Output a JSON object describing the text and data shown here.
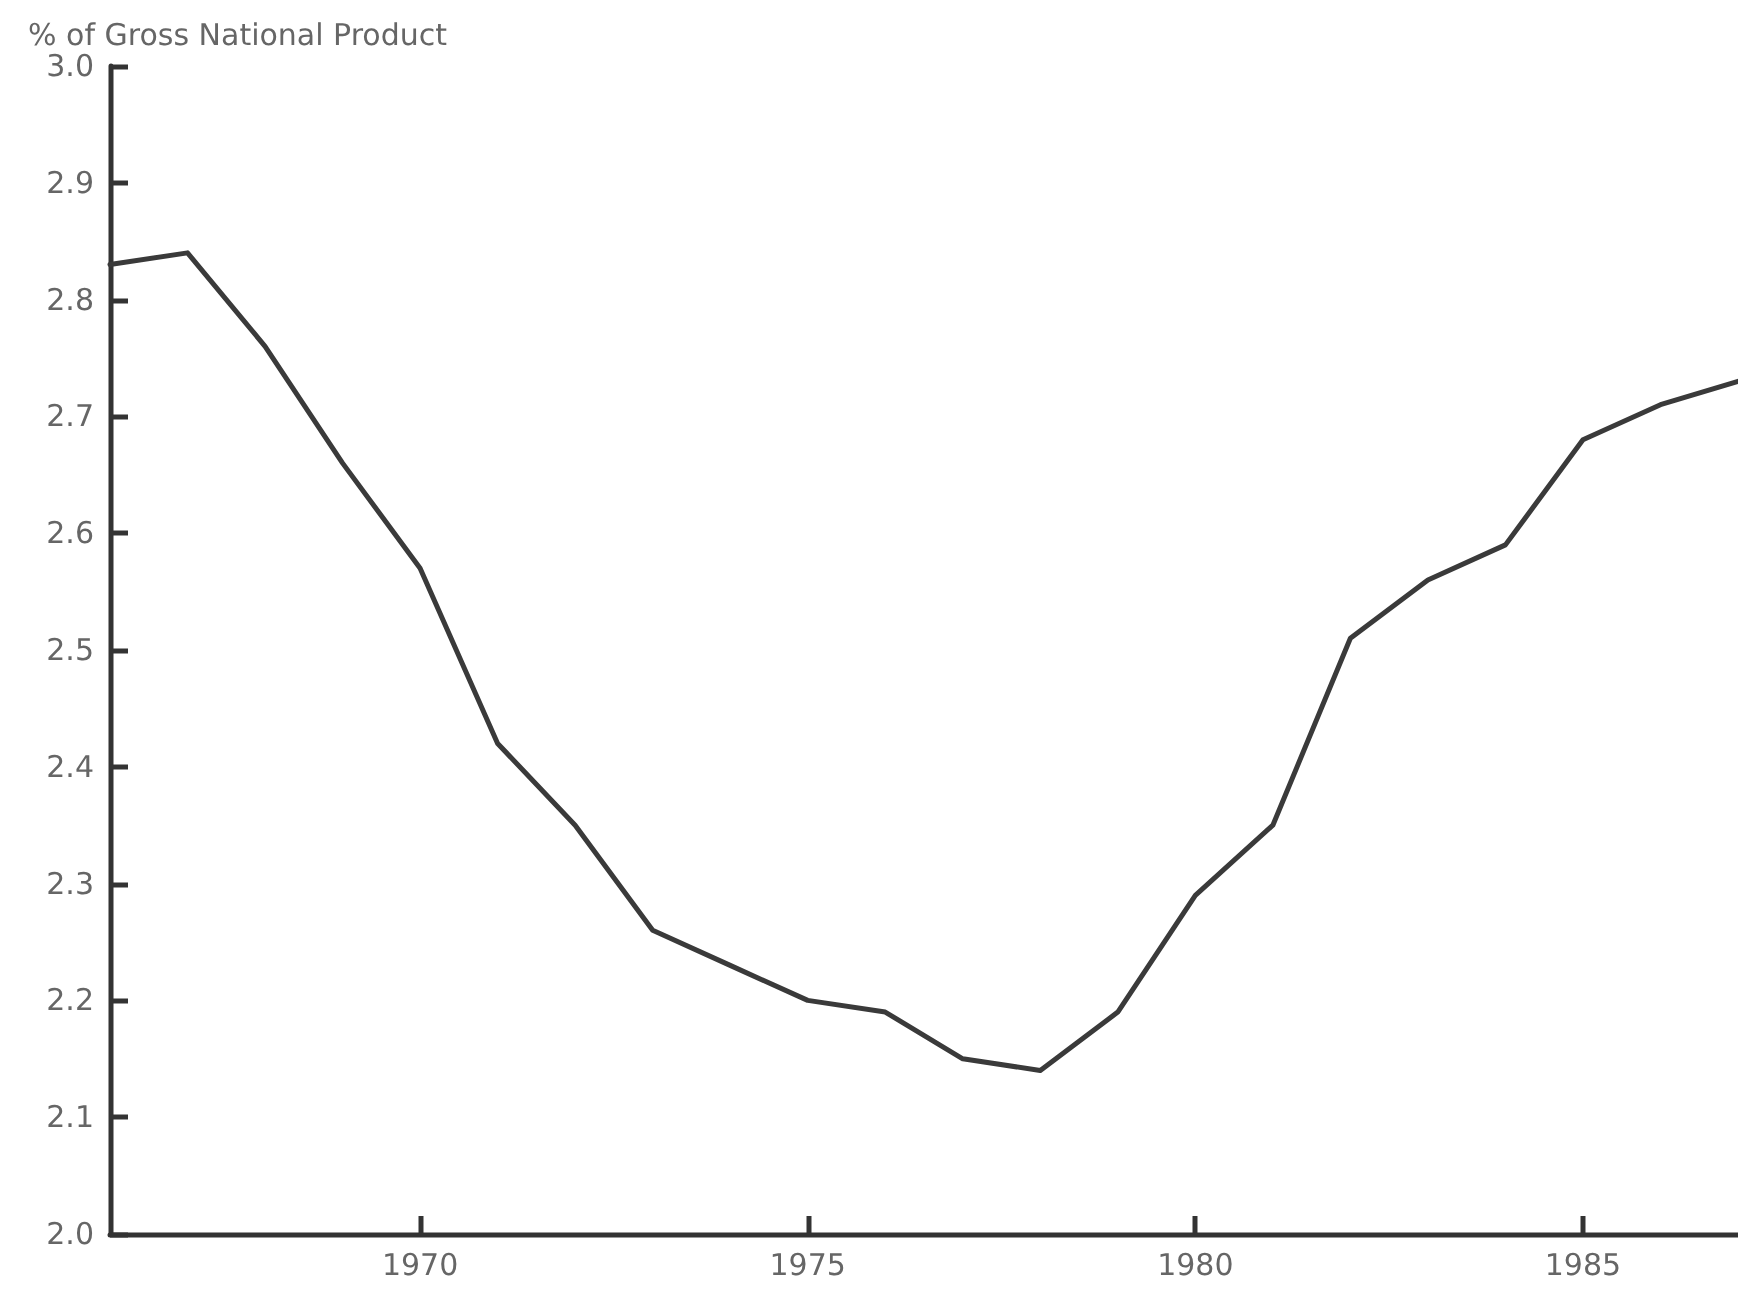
{
  "chart_data": {
    "type": "line",
    "ylabel": "% of Gross National Product",
    "x": [
      1966,
      1967,
      1968,
      1969,
      1970,
      1971,
      1972,
      1973,
      1974,
      1975,
      1976,
      1977,
      1978,
      1979,
      1980,
      1981,
      1982,
      1983,
      1984,
      1985,
      1986,
      1987
    ],
    "series": [
      {
        "color": "#3a3a3a",
        "values": [
          2.83,
          2.84,
          2.76,
          2.66,
          2.57,
          2.42,
          2.35,
          2.26,
          2.23,
          2.2,
          2.19,
          2.15,
          2.14,
          2.19,
          2.29,
          2.35,
          2.51,
          2.56,
          2.59,
          2.68,
          2.71,
          2.73
        ]
      }
    ],
    "xlim": [
      1966,
      1987
    ],
    "xticks": [
      1970,
      1975,
      1980,
      1985
    ],
    "ylim": [
      2.0,
      3.0
    ],
    "yticks": [
      {
        "value": 2.0,
        "label": "2.0"
      },
      {
        "value": 2.1,
        "label": "2.1"
      },
      {
        "value": 2.2,
        "label": "2.2"
      },
      {
        "value": 2.3,
        "label": "2.3"
      },
      {
        "value": 2.4,
        "label": "2.4"
      },
      {
        "value": 2.5,
        "label": "2.5"
      },
      {
        "value": 2.6,
        "label": "2.6"
      },
      {
        "value": 2.7,
        "label": "2.7"
      },
      {
        "value": 2.8,
        "label": "2.8"
      },
      {
        "value": 2.9,
        "label": "2.9"
      },
      {
        "value": 3.0,
        "label": "3.0"
      }
    ],
    "grid": false,
    "marker": "none",
    "line_style": "solid"
  }
}
